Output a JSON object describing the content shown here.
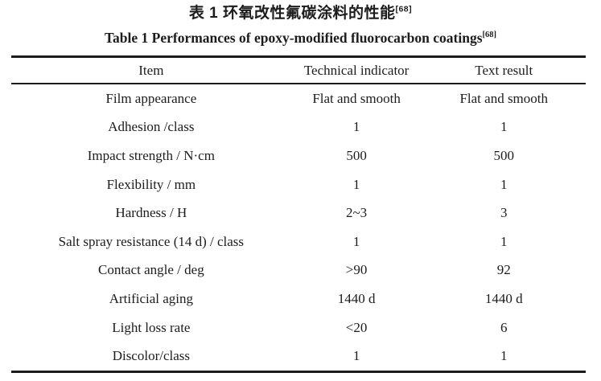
{
  "titles": {
    "zh": "表 1 环氧改性氟碳涂料的性能",
    "zh_ref": "[68]",
    "en": "Table 1 Performances of epoxy-modified fluorocarbon coatings",
    "en_ref": "[68]"
  },
  "table": {
    "headers": [
      "Item",
      "Technical indicator",
      "Text result"
    ],
    "rows": [
      [
        "Film appearance",
        "Flat and smooth",
        "Flat and smooth"
      ],
      [
        "Adhesion /class",
        "1",
        "1"
      ],
      [
        "Impact strength / N·cm",
        "500",
        "500"
      ],
      [
        "Flexibility / mm",
        "1",
        "1"
      ],
      [
        "Hardness / H",
        "2~3",
        "3"
      ],
      [
        "Salt spray resistance (14 d) / class",
        "1",
        "1"
      ],
      [
        "Contact angle / deg",
        ">90",
        "92"
      ],
      [
        "Artificial aging",
        "1440 d",
        "1440 d"
      ],
      [
        "Light loss rate",
        "<20",
        "6"
      ],
      [
        "Discolor/class",
        "1",
        "1"
      ]
    ]
  },
  "colors": {
    "text": "#1c1c1c",
    "rule": "#1c1c1c",
    "background": "#ffffff"
  }
}
